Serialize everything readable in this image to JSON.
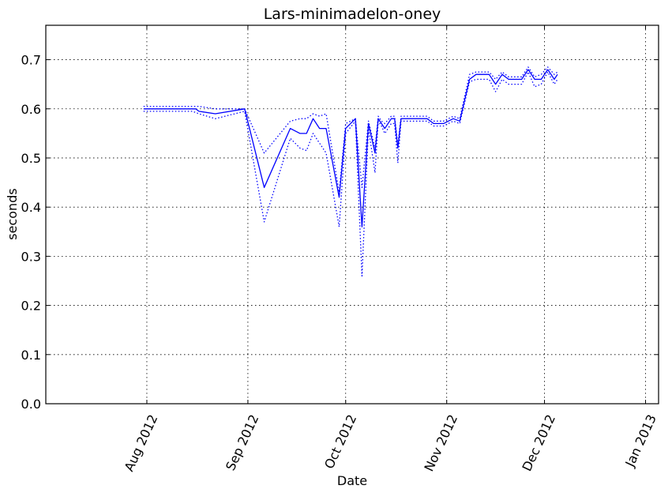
{
  "chart_data": {
    "type": "line",
    "title": "Lars-minimadelon-oney",
    "xlabel": "Date",
    "ylabel": "seconds",
    "xlim": [
      "2012-07-01",
      "2013-01-05"
    ],
    "ylim": [
      0.0,
      0.77
    ],
    "grid": true,
    "line_color": "#0000ff",
    "x_ticks": [
      {
        "date": "2012-08-01",
        "label": "Aug 2012"
      },
      {
        "date": "2012-09-01",
        "label": "Sep 2012"
      },
      {
        "date": "2012-10-01",
        "label": "Oct 2012"
      },
      {
        "date": "2012-11-01",
        "label": "Nov 2012"
      },
      {
        "date": "2012-12-01",
        "label": "Dec 2012"
      },
      {
        "date": "2013-01-01",
        "label": "Jan 2013"
      }
    ],
    "y_ticks": [
      {
        "value": 0.0,
        "label": "0.0"
      },
      {
        "value": 0.1,
        "label": "0.1"
      },
      {
        "value": 0.2,
        "label": "0.2"
      },
      {
        "value": 0.3,
        "label": "0.3"
      },
      {
        "value": 0.4,
        "label": "0.4"
      },
      {
        "value": 0.5,
        "label": "0.5"
      },
      {
        "value": 0.6,
        "label": "0.6"
      },
      {
        "value": 0.7,
        "label": "0.7"
      }
    ],
    "series": [
      {
        "style": "solid",
        "x": [
          "2012-07-31",
          "2012-08-15",
          "2012-08-16",
          "2012-08-17",
          "2012-08-22",
          "2012-08-31",
          "2012-09-06",
          "2012-09-14",
          "2012-09-17",
          "2012-09-19",
          "2012-09-21",
          "2012-09-23",
          "2012-09-25",
          "2012-09-29",
          "2012-10-01",
          "2012-10-04",
          "2012-10-06",
          "2012-10-08",
          "2012-10-10",
          "2012-10-11",
          "2012-10-12",
          "2012-10-13",
          "2012-10-15",
          "2012-10-16",
          "2012-10-17",
          "2012-10-18",
          "2012-10-19",
          "2012-10-26",
          "2012-10-28",
          "2012-10-31",
          "2012-11-03",
          "2012-11-05",
          "2012-11-08",
          "2012-11-10",
          "2012-11-14",
          "2012-11-16",
          "2012-11-18",
          "2012-11-20",
          "2012-11-24",
          "2012-11-26",
          "2012-11-28",
          "2012-11-30",
          "2012-12-02",
          "2012-12-04",
          "2012-12-05"
        ],
        "y": [
          0.6,
          0.6,
          0.6,
          0.595,
          0.59,
          0.6,
          0.44,
          0.56,
          0.55,
          0.55,
          0.58,
          0.56,
          0.56,
          0.42,
          0.56,
          0.58,
          0.36,
          0.57,
          0.51,
          0.58,
          0.57,
          0.56,
          0.58,
          0.58,
          0.52,
          0.58,
          0.58,
          0.58,
          0.57,
          0.57,
          0.58,
          0.575,
          0.66,
          0.67,
          0.67,
          0.65,
          0.67,
          0.66,
          0.66,
          0.68,
          0.66,
          0.66,
          0.68,
          0.66,
          0.67
        ]
      },
      {
        "style": "dotted",
        "x": [
          "2012-07-31",
          "2012-08-15",
          "2012-08-17",
          "2012-08-22",
          "2012-08-31",
          "2012-09-06",
          "2012-09-14",
          "2012-09-17",
          "2012-09-19",
          "2012-09-21",
          "2012-09-23",
          "2012-09-25",
          "2012-09-29",
          "2012-10-01",
          "2012-10-04",
          "2012-10-06",
          "2012-10-08",
          "2012-10-10",
          "2012-10-11",
          "2012-10-12",
          "2012-10-13",
          "2012-10-15",
          "2012-10-16",
          "2012-10-17",
          "2012-10-18",
          "2012-10-19",
          "2012-10-26",
          "2012-10-28",
          "2012-10-31",
          "2012-11-03",
          "2012-11-05",
          "2012-11-08",
          "2012-11-10",
          "2012-11-14",
          "2012-11-16",
          "2012-11-18",
          "2012-11-20",
          "2012-11-24",
          "2012-11-26",
          "2012-11-28",
          "2012-11-30",
          "2012-12-02",
          "2012-12-04",
          "2012-12-05"
        ],
        "y": [
          0.605,
          0.605,
          0.605,
          0.6,
          0.6,
          0.51,
          0.575,
          0.58,
          0.58,
          0.59,
          0.585,
          0.59,
          0.43,
          0.57,
          0.58,
          0.44,
          0.575,
          0.52,
          0.585,
          0.575,
          0.57,
          0.585,
          0.585,
          0.525,
          0.585,
          0.585,
          0.585,
          0.575,
          0.575,
          0.585,
          0.58,
          0.67,
          0.675,
          0.675,
          0.66,
          0.675,
          0.665,
          0.665,
          0.685,
          0.665,
          0.67,
          0.685,
          0.67,
          0.675
        ]
      },
      {
        "style": "dotted",
        "x": [
          "2012-07-31",
          "2012-08-15",
          "2012-08-17",
          "2012-08-22",
          "2012-08-31",
          "2012-09-06",
          "2012-09-14",
          "2012-09-17",
          "2012-09-19",
          "2012-09-21",
          "2012-09-23",
          "2012-09-25",
          "2012-09-29",
          "2012-10-01",
          "2012-10-04",
          "2012-10-06",
          "2012-10-08",
          "2012-10-10",
          "2012-10-11",
          "2012-10-12",
          "2012-10-13",
          "2012-10-15",
          "2012-10-16",
          "2012-10-17",
          "2012-10-18",
          "2012-10-19",
          "2012-10-26",
          "2012-10-28",
          "2012-10-31",
          "2012-11-03",
          "2012-11-05",
          "2012-11-08",
          "2012-11-10",
          "2012-11-14",
          "2012-11-16",
          "2012-11-18",
          "2012-11-20",
          "2012-11-24",
          "2012-11-26",
          "2012-11-28",
          "2012-11-30",
          "2012-12-02",
          "2012-12-04",
          "2012-12-05"
        ],
        "y": [
          0.595,
          0.595,
          0.59,
          0.58,
          0.595,
          0.37,
          0.54,
          0.52,
          0.515,
          0.55,
          0.53,
          0.51,
          0.36,
          0.55,
          0.575,
          0.26,
          0.56,
          0.47,
          0.575,
          0.565,
          0.55,
          0.57,
          0.57,
          0.49,
          0.575,
          0.575,
          0.575,
          0.565,
          0.565,
          0.575,
          0.57,
          0.655,
          0.66,
          0.66,
          0.635,
          0.66,
          0.65,
          0.65,
          0.675,
          0.645,
          0.65,
          0.675,
          0.65,
          0.66
        ]
      }
    ]
  }
}
